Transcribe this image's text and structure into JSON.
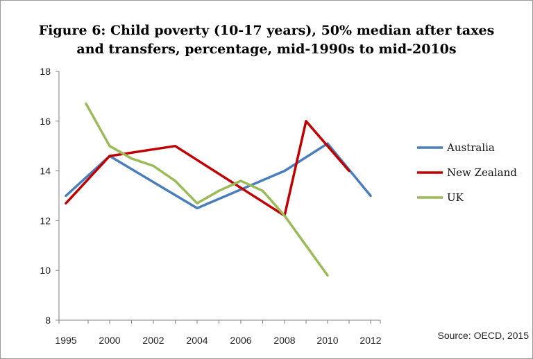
{
  "chart_data": {
    "type": "line",
    "title": "Figure 6: Child poverty (10-17 years), 50% median after taxes",
    "subtitle": "and transfers, percentage, mid-1990s to mid-2010s",
    "x_ticks": [
      "1995",
      "2000",
      "2002",
      "2004",
      "2006",
      "2008",
      "2010",
      "2012"
    ],
    "y_ticks": [
      "8",
      "10",
      "12",
      "14",
      "16",
      "18"
    ],
    "ylim": [
      8,
      18
    ],
    "grid": false,
    "legend_position": "right",
    "series": [
      {
        "name": "Australia",
        "color": "#4a7ebb",
        "points": [
          [
            "1995",
            13.0
          ],
          [
            "2000",
            14.6
          ],
          [
            "2004",
            12.5
          ],
          [
            "2008",
            14.0
          ],
          [
            "2010",
            15.1
          ],
          [
            "2012",
            13.0
          ]
        ]
      },
      {
        "name": "New Zealand",
        "color": "#c00000",
        "points": [
          [
            "1995",
            12.7
          ],
          [
            "2000",
            14.6
          ],
          [
            "2003",
            15.0
          ],
          [
            "2008",
            12.2
          ],
          [
            "2009",
            16.0
          ],
          [
            "2011",
            14.0
          ]
        ]
      },
      {
        "name": "UK",
        "color": "#9bbb59",
        "points": [
          [
            "1999",
            16.7
          ],
          [
            "2000",
            15.0
          ],
          [
            "2001",
            14.5
          ],
          [
            "2002",
            14.2
          ],
          [
            "2003",
            13.6
          ],
          [
            "2004",
            12.7
          ],
          [
            "2005",
            13.2
          ],
          [
            "2006",
            13.6
          ],
          [
            "2007",
            13.2
          ],
          [
            "2008",
            12.2
          ],
          [
            "2009",
            11.0
          ],
          [
            "2010",
            9.8
          ]
        ]
      }
    ],
    "source": "Source: OECD, 2015"
  }
}
